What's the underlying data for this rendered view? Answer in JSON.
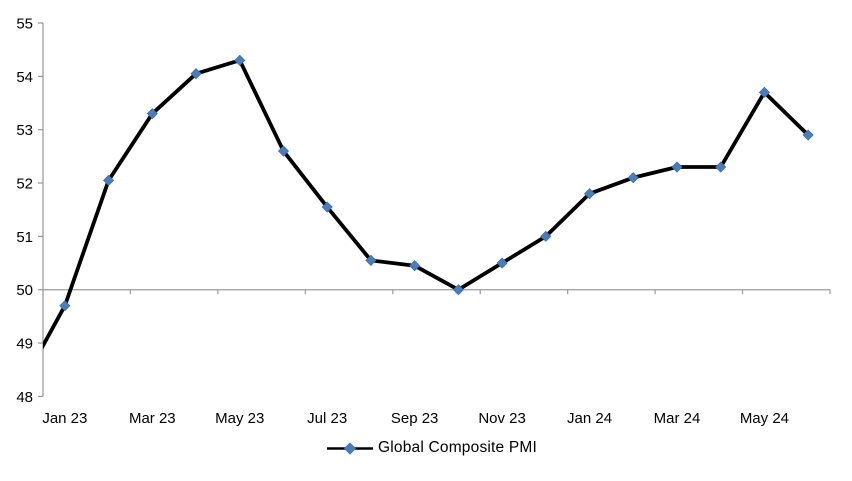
{
  "chart_data": {
    "type": "line",
    "title": "",
    "xlabel": "",
    "ylabel": "",
    "x": [
      "Jan 23",
      "Feb 23",
      "Mar 23",
      "Apr 23",
      "May 23",
      "Jun 23",
      "Jul 23",
      "Aug 23",
      "Sep 23",
      "Oct 23",
      "Nov 23",
      "Dec 23",
      "Jan 24",
      "Feb 24",
      "Mar 24",
      "Apr 24",
      "May 24",
      "Jun 24"
    ],
    "series": [
      {
        "name": "Global Composite PMI",
        "values": [
          49.7,
          52.05,
          53.3,
          54.05,
          54.3,
          52.6,
          51.55,
          50.55,
          50.45,
          50.0,
          50.5,
          51.0,
          51.8,
          52.1,
          52.3,
          52.3,
          53.7,
          52.9
        ]
      }
    ],
    "lead_in": {
      "note": "line enters plot clipped at left axis",
      "value_at_left_axis": 48.9,
      "extrapolated_prev_value": 48.2
    },
    "x_tick_labels": [
      "Jan 23",
      "Mar 23",
      "May 23",
      "Jul 23",
      "Sep 23",
      "Nov 23",
      "Jan 24",
      "Mar 24",
      "May 24"
    ],
    "x_tick_label_interval": 2,
    "y_ticks": [
      48,
      49,
      50,
      51,
      52,
      53,
      54,
      55
    ],
    "ylim": [
      48,
      55
    ],
    "reference_line_y": 50,
    "grid": "off",
    "legend": {
      "label": "Global Composite PMI",
      "position": "bottom-center"
    },
    "colors": {
      "line": "#000000",
      "marker": "#4A7EBB",
      "marker_edge": "#3D6FA8",
      "axis": "#969696",
      "reference_line": "#9C9C9C",
      "text": "#000000",
      "background": "#FFFFFF"
    }
  }
}
